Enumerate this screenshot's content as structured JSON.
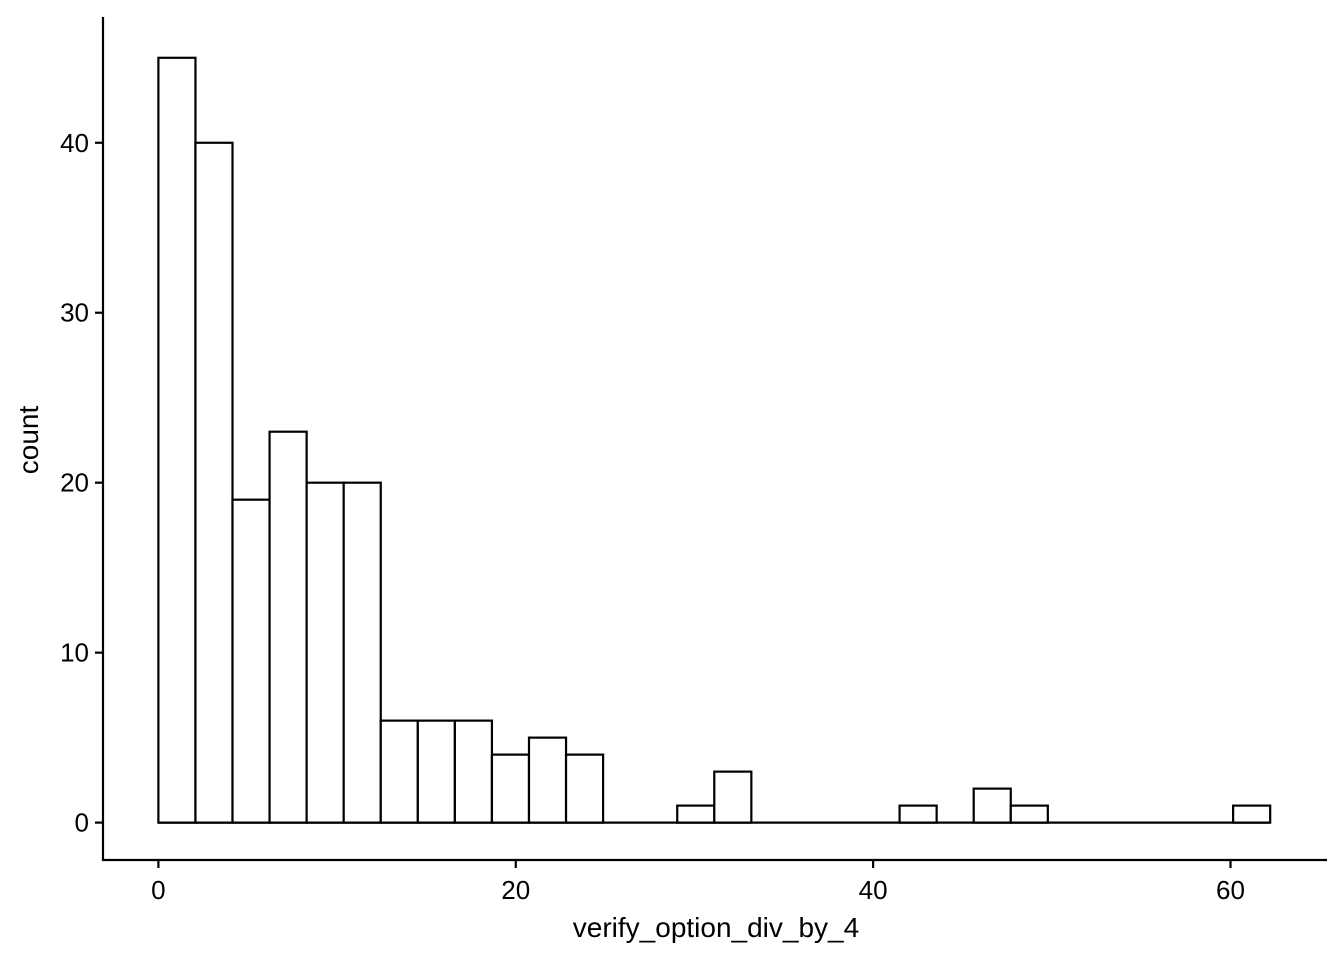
{
  "chart_data": {
    "type": "bar",
    "title": "",
    "xlabel": "verify_option_div_by_4",
    "ylabel": "count",
    "xlim": [
      -3.1,
      65.4
    ],
    "ylim": [
      -2.2,
      47.4
    ],
    "bin_width": 2.074,
    "bin_start": 0,
    "values": [
      45,
      40,
      19,
      23,
      20,
      20,
      6,
      6,
      6,
      4,
      5,
      4,
      0,
      0,
      1,
      3,
      0,
      0,
      0,
      0,
      1,
      0,
      2,
      1,
      0,
      0,
      0,
      0,
      0,
      1
    ],
    "x_ticks": [
      0,
      20,
      40,
      60
    ],
    "x_tick_labels": [
      "0",
      "20",
      "40",
      "60"
    ],
    "y_ticks": [
      0,
      10,
      20,
      30,
      40
    ],
    "y_tick_labels": [
      "0",
      "10",
      "20",
      "30",
      "40"
    ],
    "grid": false,
    "legend": "none",
    "colors": {
      "bar_fill": "#ffffff",
      "bar_stroke": "#000000"
    }
  }
}
